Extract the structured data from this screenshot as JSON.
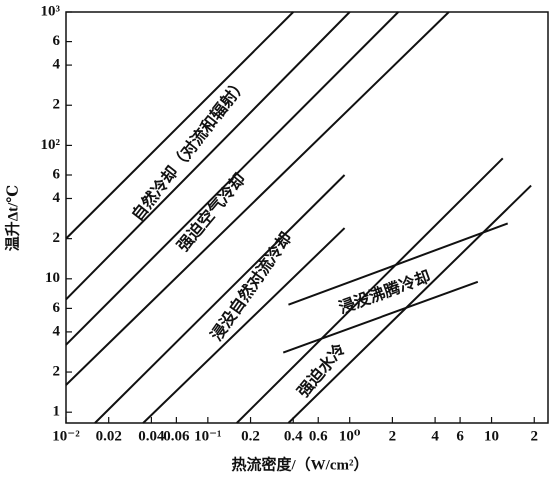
{
  "chart_data": {
    "type": "line",
    "x_label": "热流密度/（W/cm²）",
    "y_label": "温升Δt/℃",
    "xscale": "log",
    "yscale": "log",
    "color": "#111111",
    "xlim": [
      0.01,
      25
    ],
    "ylim": [
      0.83,
      1000
    ],
    "xticks": [
      {
        "value": 0.01,
        "label": "10⁻²"
      },
      0.02,
      0.04,
      0.06,
      {
        "value": 0.1,
        "label": "10⁻¹"
      },
      0.2,
      0.4,
      0.6,
      {
        "value": 1,
        "label": "10⁰"
      },
      2,
      4,
      6,
      10,
      {
        "value": 20,
        "label": "2"
      }
    ],
    "yticks": [
      1,
      2,
      4,
      6,
      10,
      {
        "value": 20,
        "label": "2"
      },
      {
        "value": 40,
        "label": "4"
      },
      {
        "value": 60,
        "label": "6"
      },
      {
        "value": 100,
        "label": "10²"
      },
      {
        "value": 200,
        "label": "2"
      },
      {
        "value": 400,
        "label": "4"
      },
      {
        "value": 600,
        "label": "6"
      },
      {
        "value": 1000,
        "label": "10³"
      }
    ],
    "series": [
      {
        "x": [
          0.01,
          0.4
        ],
        "values": [
          20,
          1000
        ]
      },
      {
        "x": [
          0.01,
          1
        ],
        "values": [
          7,
          1000
        ]
      },
      {
        "x": [
          0.01,
          2.2
        ],
        "values": [
          3.2,
          1000
        ]
      },
      {
        "x": [
          0.01,
          5
        ],
        "values": [
          1.6,
          1000
        ]
      },
      {
        "x": [
          0.016,
          0.92
        ],
        "values": [
          0.83,
          60
        ]
      },
      {
        "x": [
          0.035,
          0.92
        ],
        "values": [
          0.83,
          24
        ]
      },
      {
        "x": [
          0.16,
          12
        ],
        "values": [
          0.83,
          80
        ]
      },
      {
        "x": [
          0.37,
          19
        ],
        "values": [
          0.83,
          50
        ]
      },
      {
        "x": [
          0.37,
          13
        ],
        "values": [
          6.4,
          26
        ]
      },
      {
        "x": [
          0.34,
          8
        ],
        "values": [
          2.8,
          9.5
        ]
      }
    ],
    "annotations": [
      "自然冷却（对流和辐射）",
      "强迫空气冷却",
      "浸没自然对流冷却",
      "浸没沸腾冷却",
      "强迫水冷"
    ]
  }
}
